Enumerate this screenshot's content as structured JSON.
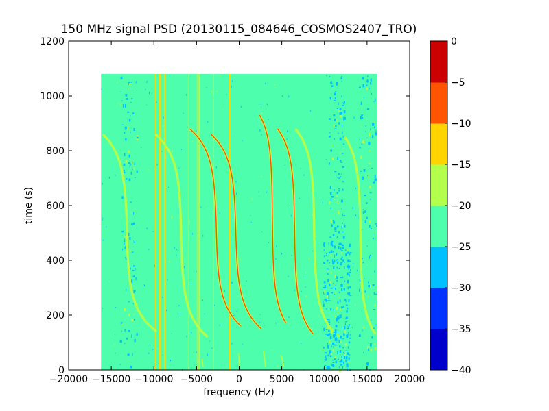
{
  "chart_data": {
    "type": "heatmap",
    "title": "150 MHz signal PSD (20130115_084646_COSMOS2407_TRO)",
    "xlabel": "frequency (Hz)",
    "ylabel": "time (s)",
    "xlim": [
      -20000,
      20000
    ],
    "ylim": [
      0,
      1200
    ],
    "xticks": [
      -20000,
      -15000,
      -10000,
      -5000,
      0,
      5000,
      10000,
      15000,
      20000
    ],
    "yticks": [
      0,
      200,
      400,
      600,
      800,
      1000,
      1200
    ],
    "xtick_labels": [
      "−20000",
      "−15000",
      "−10000",
      "−5000",
      "0",
      "5000",
      "10000",
      "15000",
      "20000"
    ],
    "ytick_labels": [
      "0",
      "200",
      "400",
      "600",
      "800",
      "1000",
      "1200"
    ],
    "data_extent": {
      "x": [
        -16200,
        16200
      ],
      "y": [
        0,
        1080
      ]
    },
    "background_level": -22.5,
    "grid": false,
    "colorbar": {
      "levels": [
        -40,
        -35,
        -30,
        -25,
        -20,
        -15,
        -10,
        -5,
        0
      ],
      "tick_labels": [
        "−40",
        "−35",
        "−30",
        "−25",
        "−20",
        "−15",
        "−10",
        "−5",
        "0"
      ],
      "colors": [
        "#0000cc",
        "#0033ff",
        "#00c0ff",
        "#4dffad",
        "#b2ff4c",
        "#ffd400",
        "#ff5500",
        "#cc0000"
      ]
    },
    "constant_lines": [
      {
        "f": -9800,
        "level": -12,
        "width": 1.4
      },
      {
        "f": -9300,
        "level": -12,
        "width": 3.0
      },
      {
        "f": -8700,
        "level": -12,
        "width": 3.0
      },
      {
        "f": -5900,
        "level": -17,
        "width": 1.2
      },
      {
        "f": -4900,
        "level": -12,
        "width": 1.6
      },
      {
        "f": -4700,
        "level": -17,
        "width": 1.2
      },
      {
        "f": -3000,
        "level": -17,
        "width": 1.0
      },
      {
        "f": -1100,
        "level": -12,
        "width": 2.0
      }
    ],
    "doppler_traces": [
      {
        "f_top": -16000,
        "f_bottom": -9700,
        "t_mid": 560,
        "f_mid": -13200,
        "t_top": 860,
        "t_bottom": 140,
        "level": -17
      },
      {
        "f_top": -9800,
        "f_bottom": -3700,
        "t_mid": 480,
        "f_mid": -6800,
        "t_top": 860,
        "t_bottom": 120,
        "level": -17
      },
      {
        "f_top": -5800,
        "f_bottom": 200,
        "t_mid": 540,
        "f_mid": -2700,
        "t_top": 880,
        "t_bottom": 160,
        "level": -7
      },
      {
        "f_top": -3300,
        "f_bottom": 2600,
        "t_mid": 510,
        "f_mid": -400,
        "t_top": 860,
        "t_bottom": 150,
        "level": -7
      },
      {
        "f_top": 2400,
        "f_bottom": 5500,
        "t_mid": 540,
        "f_mid": 3900,
        "t_top": 930,
        "t_bottom": 170,
        "level": -7
      },
      {
        "f_top": 4500,
        "f_bottom": 8700,
        "t_mid": 520,
        "f_mid": 6500,
        "t_top": 880,
        "t_bottom": 130,
        "level": -7
      },
      {
        "f_top": 6600,
        "f_bottom": 11000,
        "t_mid": 500,
        "f_mid": 8800,
        "t_top": 880,
        "t_bottom": 140,
        "level": -17
      },
      {
        "f_top": 12400,
        "f_bottom": 16000,
        "t_mid": 560,
        "f_mid": 14200,
        "t_top": 850,
        "t_bottom": 130,
        "level": -17
      }
    ],
    "bottom_fragments": [
      {
        "f_start": -80,
        "f_end": 50,
        "t_start": 60,
        "t_end": 10,
        "level": -17
      },
      {
        "f_start": 2850,
        "f_end": 3100,
        "t_start": 70,
        "t_end": 10,
        "level": -17
      },
      {
        "f_start": 5000,
        "f_end": 5200,
        "t_start": 50,
        "t_end": 10,
        "level": -17
      },
      {
        "f_start": -4350,
        "f_end": -4250,
        "t_start": 40,
        "t_end": 10,
        "level": -17
      }
    ],
    "noisy_regions": [
      {
        "f": [
          -14000,
          -12000
        ],
        "t": [
          0,
          1080
        ],
        "density": 0.1
      },
      {
        "f": [
          9800,
          13000
        ],
        "t": [
          0,
          480
        ],
        "density": 0.55
      },
      {
        "f": [
          10500,
          12300
        ],
        "t": [
          480,
          1080
        ],
        "density": 0.2
      },
      {
        "f": [
          14000,
          16000
        ],
        "t": [
          0,
          1080
        ],
        "density": 0.08
      }
    ]
  }
}
